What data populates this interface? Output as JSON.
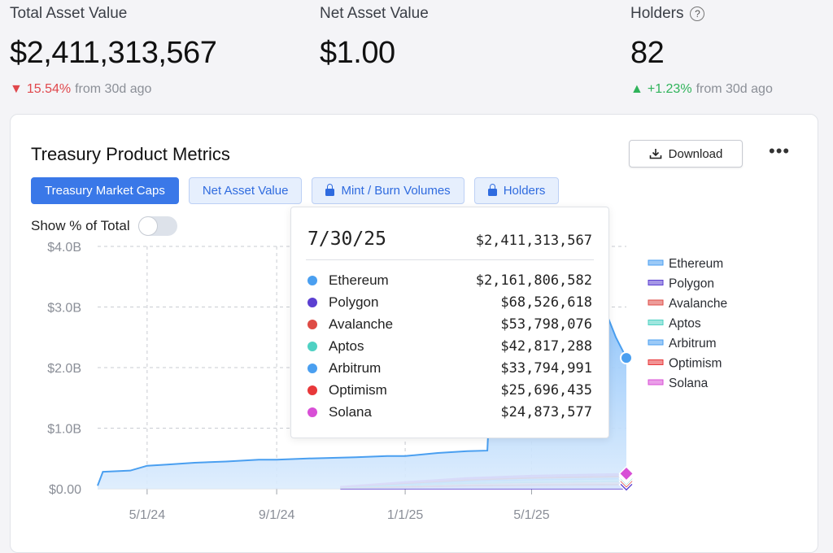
{
  "stats": {
    "total_asset_value": {
      "label": "Total Asset Value",
      "value": "$2,411,313,567",
      "change": "15.54%",
      "change_suffix": "from 30d ago",
      "direction": "down"
    },
    "net_asset_value": {
      "label": "Net Asset Value",
      "value": "$1.00"
    },
    "holders": {
      "label": "Holders",
      "value": "82",
      "change": "+1.23%",
      "change_suffix": "from 30d ago",
      "direction": "up",
      "help_icon": "question-circle-icon"
    }
  },
  "card": {
    "title": "Treasury Product Metrics",
    "download_label": "Download",
    "more_icon": "more-horizontal-icon",
    "tabs": [
      {
        "label": "Treasury Market Caps",
        "active": true,
        "locked": false
      },
      {
        "label": "Net Asset Value",
        "active": false,
        "locked": false
      },
      {
        "label": "Mint / Burn Volumes",
        "active": false,
        "locked": true
      },
      {
        "label": "Holders",
        "active": false,
        "locked": true
      }
    ],
    "toggle_label": "Show % of Total",
    "toggle_on": false
  },
  "tooltip": {
    "date": "7/30/25",
    "total": "$2,411,313,567",
    "rows": [
      {
        "name": "Ethereum",
        "value": "$2,161,806,582",
        "color": "#4a9ff0"
      },
      {
        "name": "Polygon",
        "value": "$68,526,618",
        "color": "#5b3fd1"
      },
      {
        "name": "Avalanche",
        "value": "$53,798,076",
        "color": "#de4b45"
      },
      {
        "name": "Aptos",
        "value": "$42,817,288",
        "color": "#4fd1c3"
      },
      {
        "name": "Arbitrum",
        "value": "$33,794,991",
        "color": "#4a9ff0"
      },
      {
        "name": "Optimism",
        "value": "$25,696,435",
        "color": "#e8383a"
      },
      {
        "name": "Solana",
        "value": "$24,873,577",
        "color": "#d84fd6"
      }
    ]
  },
  "chart_data": {
    "type": "area",
    "stacked": true,
    "y_ticks": [
      "$0.00",
      "$1.0B",
      "$2.0B",
      "$3.0B",
      "$4.0B"
    ],
    "x_ticks": [
      "5/1/24",
      "9/1/24",
      "1/1/25",
      "5/1/25"
    ],
    "ylim": [
      0,
      4000000000
    ],
    "legend_position": "right",
    "grid": true,
    "series": [
      {
        "name": "Ethereum",
        "color": "#4a9ff0",
        "x": [
          "2024-03-15",
          "2024-03-20",
          "2024-04-15",
          "2024-05-01",
          "2024-05-20",
          "2024-06-15",
          "2024-07-15",
          "2024-08-15",
          "2024-09-01",
          "2024-10-01",
          "2024-11-15",
          "2024-12-15",
          "2025-01-01",
          "2025-02-01",
          "2025-03-01",
          "2025-03-20",
          "2025-03-21",
          "2025-04-15",
          "2025-05-15",
          "2025-06-15",
          "2025-07-10",
          "2025-07-12",
          "2025-07-20",
          "2025-07-30"
        ],
        "values": [
          50000000,
          280000000,
          300000000,
          380000000,
          400000000,
          430000000,
          450000000,
          480000000,
          480000000,
          500000000,
          520000000,
          540000000,
          540000000,
          590000000,
          620000000,
          630000000,
          1000000000,
          1200000000,
          1400000000,
          1900000000,
          1900000000,
          2850000000,
          2500000000,
          2160000000
        ]
      },
      {
        "name": "Polygon",
        "color": "#5b3fd1",
        "x": [
          "2024-11-01",
          "2025-01-01",
          "2025-03-01",
          "2025-05-01",
          "2025-07-30"
        ],
        "values": [
          10000000,
          30000000,
          50000000,
          60000000,
          68500000
        ]
      },
      {
        "name": "Avalanche",
        "color": "#de4b45",
        "x": [
          "2024-11-01",
          "2025-01-01",
          "2025-03-01",
          "2025-05-01",
          "2025-07-30"
        ],
        "values": [
          8000000,
          25000000,
          40000000,
          48000000,
          53800000
        ]
      },
      {
        "name": "Aptos",
        "color": "#4fd1c3",
        "x": [
          "2024-11-01",
          "2025-01-01",
          "2025-03-01",
          "2025-05-01",
          "2025-07-30"
        ],
        "values": [
          6000000,
          20000000,
          30000000,
          38000000,
          42800000
        ]
      },
      {
        "name": "Arbitrum",
        "color": "#4a9ff0",
        "x": [
          "2024-11-01",
          "2025-01-01",
          "2025-03-01",
          "2025-05-01",
          "2025-07-30"
        ],
        "values": [
          5000000,
          15000000,
          25000000,
          30000000,
          33800000
        ]
      },
      {
        "name": "Optimism",
        "color": "#e8383a",
        "x": [
          "2024-11-01",
          "2025-01-01",
          "2025-03-01",
          "2025-05-01",
          "2025-07-30"
        ],
        "values": [
          4000000,
          12000000,
          18000000,
          22000000,
          25700000
        ]
      },
      {
        "name": "Solana",
        "color": "#d84fd6",
        "x": [
          "2024-11-01",
          "2025-01-01",
          "2025-03-01",
          "2025-05-01",
          "2025-07-30"
        ],
        "values": [
          4000000,
          12000000,
          18000000,
          22000000,
          24900000
        ]
      }
    ]
  }
}
